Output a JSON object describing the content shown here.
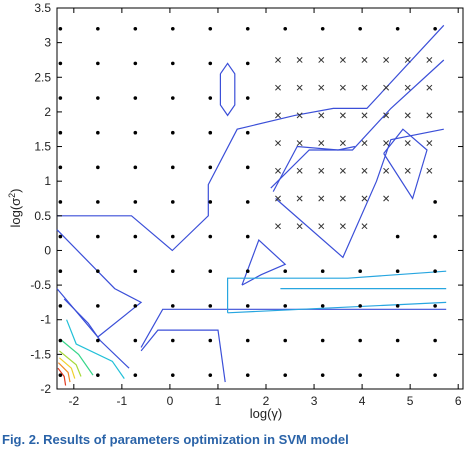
{
  "caption": "Fig. 2. Results of parameters optimization in SVM model",
  "chart_data": {
    "type": "scatter",
    "xlabel": "log(γ)",
    "ylabel_base": "log(σ",
    "ylabel_sup": "2",
    "ylabel_end": ")",
    "xlim": [
      -2.35,
      6.1
    ],
    "ylim": [
      -2.0,
      3.5
    ],
    "xticks": [
      -2,
      -1,
      0,
      1,
      2,
      3,
      4,
      5,
      6
    ],
    "yticks": [
      -2,
      -1.5,
      -1,
      -0.5,
      0,
      0.5,
      1,
      1.5,
      2,
      2.5,
      3,
      3.5
    ],
    "grid_x": [
      -2.15,
      -1.42,
      -0.68,
      0.06,
      0.8,
      1.54,
      2.28,
      3.02,
      3.76,
      4.5,
      5.24,
      5.98
    ],
    "grid_y": [
      -1.8,
      -1.25,
      -0.7,
      -0.15,
      0.4,
      0.95,
      1.5,
      2.05,
      2.6,
      3.15
    ],
    "grid_x_actual": [
      -2.25,
      -1.5,
      -0.75,
      0.0,
      0.75,
      1.5,
      2.25,
      3.0,
      3.75,
      4.5,
      5.25,
      6.0
    ],
    "dots_x": [
      -2.28,
      -1.5,
      -0.72,
      0.06,
      0.84,
      1.62,
      2.4,
      3.18,
      3.96,
      4.74,
      5.52
    ],
    "dots_y": [
      -1.8,
      -1.3,
      -0.8,
      -0.3,
      0.2,
      0.7,
      1.2,
      1.7,
      2.2,
      2.7,
      3.2
    ],
    "crosses": [
      [
        2.25,
        2.75
      ],
      [
        2.7,
        2.75
      ],
      [
        3.15,
        2.75
      ],
      [
        3.6,
        2.75
      ],
      [
        4.05,
        2.75
      ],
      [
        4.5,
        2.75
      ],
      [
        4.95,
        2.75
      ],
      [
        5.4,
        2.75
      ],
      [
        2.25,
        2.35
      ],
      [
        2.7,
        2.35
      ],
      [
        3.15,
        2.35
      ],
      [
        3.6,
        2.35
      ],
      [
        4.05,
        2.35
      ],
      [
        4.5,
        2.35
      ],
      [
        4.95,
        2.35
      ],
      [
        5.4,
        2.35
      ],
      [
        2.25,
        1.95
      ],
      [
        2.7,
        1.95
      ],
      [
        3.15,
        1.95
      ],
      [
        3.6,
        1.95
      ],
      [
        4.05,
        1.95
      ],
      [
        4.5,
        1.95
      ],
      [
        4.95,
        1.95
      ],
      [
        5.4,
        1.95
      ],
      [
        2.25,
        1.55
      ],
      [
        2.7,
        1.55
      ],
      [
        3.15,
        1.55
      ],
      [
        3.6,
        1.55
      ],
      [
        4.05,
        1.55
      ],
      [
        4.5,
        1.55
      ],
      [
        4.95,
        1.55
      ],
      [
        5.4,
        1.55
      ],
      [
        2.25,
        1.15
      ],
      [
        2.7,
        1.15
      ],
      [
        3.15,
        1.15
      ],
      [
        3.6,
        1.15
      ],
      [
        4.05,
        1.15
      ],
      [
        4.5,
        1.15
      ],
      [
        4.95,
        1.15
      ],
      [
        5.4,
        1.15
      ],
      [
        2.25,
        0.75
      ],
      [
        2.7,
        0.75
      ],
      [
        3.15,
        0.75
      ],
      [
        3.6,
        0.75
      ],
      [
        4.05,
        0.75
      ],
      [
        4.5,
        0.75
      ],
      [
        2.25,
        0.35
      ],
      [
        2.7,
        0.35
      ],
      [
        3.15,
        0.35
      ],
      [
        3.6,
        0.35
      ],
      [
        4.05,
        0.35
      ]
    ],
    "contours": [
      {
        "color": "#3b4fd8",
        "points": [
          [
            -2.35,
            0.5
          ],
          [
            -0.8,
            0.5
          ],
          [
            0.05,
            0.0
          ],
          [
            0.8,
            0.5
          ],
          [
            0.8,
            0.95
          ],
          [
            1.4,
            1.75
          ],
          [
            2.6,
            1.95
          ],
          [
            3.4,
            2.05
          ],
          [
            4.1,
            2.05
          ],
          [
            5.7,
            3.25
          ]
        ]
      },
      {
        "color": "#3b4fd8",
        "points": [
          [
            2.1,
            0.9
          ],
          [
            2.9,
            1.45
          ],
          [
            3.8,
            1.45
          ],
          [
            4.6,
            2.05
          ],
          [
            5.7,
            2.75
          ]
        ]
      },
      {
        "color": "#3b4fd8",
        "points": [
          [
            2.2,
            0.75
          ],
          [
            3.6,
            -0.1
          ],
          [
            4.3,
            1.0
          ],
          [
            4.6,
            1.6
          ],
          [
            5.7,
            1.75
          ]
        ]
      },
      {
        "color": "#3b4fd8",
        "points": [
          [
            2.15,
            0.85
          ],
          [
            2.65,
            1.5
          ],
          [
            3.5,
            1.45
          ],
          [
            3.85,
            1.5
          ]
        ]
      },
      {
        "color": "#3b4fd8",
        "points": [
          [
            4.45,
            1.4
          ],
          [
            4.85,
            1.75
          ],
          [
            5.35,
            1.45
          ],
          [
            5.05,
            0.75
          ],
          [
            4.45,
            1.4
          ]
        ]
      },
      {
        "color": "#3b4fd8",
        "points": [
          [
            1.05,
            2.55
          ],
          [
            1.2,
            2.7
          ],
          [
            1.35,
            2.55
          ],
          [
            1.35,
            2.1
          ],
          [
            1.2,
            1.95
          ],
          [
            1.05,
            2.1
          ],
          [
            1.05,
            2.55
          ]
        ]
      },
      {
        "color": "#3b4fd8",
        "points": [
          [
            1.5,
            -0.5
          ],
          [
            1.85,
            0.15
          ],
          [
            2.4,
            -0.2
          ],
          [
            1.9,
            -0.35
          ],
          [
            1.5,
            -0.5
          ]
        ]
      },
      {
        "color": "#3b4fd8",
        "points": [
          [
            -2.35,
            0.3
          ],
          [
            -1.15,
            -0.55
          ],
          [
            -0.6,
            -0.75
          ],
          [
            -1.5,
            -1.25
          ],
          [
            -2.35,
            -0.55
          ]
        ]
      },
      {
        "color": "#3b4fd8",
        "points": [
          [
            -0.6,
            -1.4
          ],
          [
            -0.15,
            -0.85
          ],
          [
            1.0,
            -0.85
          ],
          [
            5.75,
            -0.85
          ]
        ]
      },
      {
        "color": "#3b4fd8",
        "points": [
          [
            -0.6,
            -1.45
          ],
          [
            -0.25,
            -1.15
          ],
          [
            1.0,
            -1.15
          ],
          [
            1.15,
            -1.9
          ]
        ]
      },
      {
        "color": "#27a6e0",
        "points": [
          [
            1.2,
            -0.9
          ],
          [
            1.2,
            -0.4
          ],
          [
            3.7,
            -0.4
          ],
          [
            5.75,
            -0.3
          ]
        ]
      },
      {
        "color": "#27a6e0",
        "points": [
          [
            1.2,
            -0.9
          ],
          [
            5.75,
            -0.75
          ]
        ]
      },
      {
        "color": "#27a6e0",
        "points": [
          [
            2.3,
            -0.55
          ],
          [
            5.75,
            -0.55
          ]
        ]
      },
      {
        "color": "#3b4fd8",
        "points": [
          [
            -2.2,
            -0.7
          ],
          [
            -1.7,
            -1.05
          ],
          [
            -1.45,
            -1.3
          ],
          [
            -0.85,
            -1.7
          ]
        ]
      },
      {
        "color": "#22c0d8",
        "points": [
          [
            -2.15,
            -1.0
          ],
          [
            -1.95,
            -1.35
          ],
          [
            -1.2,
            -1.6
          ],
          [
            -0.95,
            -1.85
          ]
        ]
      },
      {
        "color": "#36d68a",
        "points": [
          [
            -2.25,
            -1.3
          ],
          [
            -1.9,
            -1.5
          ],
          [
            -1.6,
            -1.8
          ]
        ]
      },
      {
        "color": "#a6d93a",
        "points": [
          [
            -2.3,
            -1.45
          ],
          [
            -1.95,
            -1.65
          ],
          [
            -1.85,
            -1.82
          ]
        ]
      },
      {
        "color": "#f0d12c",
        "points": [
          [
            -2.3,
            -1.55
          ],
          [
            -2.05,
            -1.7
          ],
          [
            -1.98,
            -1.85
          ]
        ]
      },
      {
        "color": "#f08a24",
        "points": [
          [
            -2.32,
            -1.62
          ],
          [
            -2.12,
            -1.76
          ],
          [
            -2.08,
            -1.9
          ]
        ]
      },
      {
        "color": "#e03a20",
        "points": [
          [
            -2.33,
            -1.7
          ],
          [
            -2.2,
            -1.82
          ],
          [
            -2.17,
            -1.95
          ]
        ]
      }
    ]
  }
}
